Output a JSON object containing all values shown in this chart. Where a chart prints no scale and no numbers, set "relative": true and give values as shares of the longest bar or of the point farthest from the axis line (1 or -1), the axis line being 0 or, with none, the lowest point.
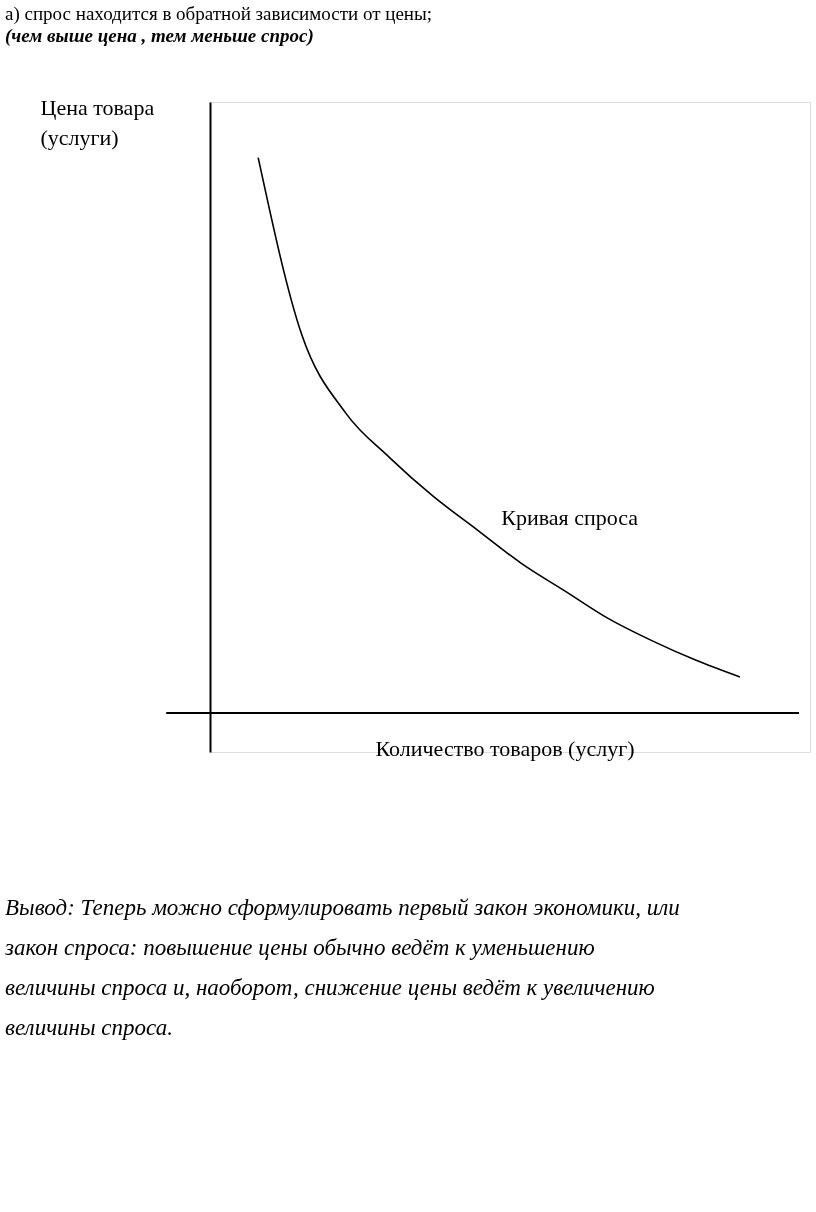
{
  "chart_data": {
    "type": "line",
    "relative": true,
    "title": "а) спрос находится в обратной зависимости от цены;",
    "subtitle": "(чем выше цена , тем меньше спрос)",
    "xlabel": "Количество товаров (услуг)",
    "ylabel": "Цена товара (услуги)",
    "categories": [
      null,
      null,
      null,
      null,
      null,
      null,
      null,
      null,
      null,
      null,
      null,
      null
    ],
    "series": [
      {
        "color": "#000000",
        "values": [
          1,
          0.68,
          0.54,
          0.46,
          0.39,
          0.33,
          0.27,
          0.22,
          0.17,
          0.13,
          0.095,
          0.065
        ]
      }
    ],
    "annotations": [
      "Кривая спроса",
      "Вывод: Теперь можно сформулировать первый закон экономики, или закон спроса: повышение цены обычно ведёт к уменьшению величины спроса и, наоборот, снижение цены ведёт к увеличению величины спроса."
    ],
    "grid": false,
    "legend": false,
    "marker": "none",
    "line_style": "solid"
  }
}
